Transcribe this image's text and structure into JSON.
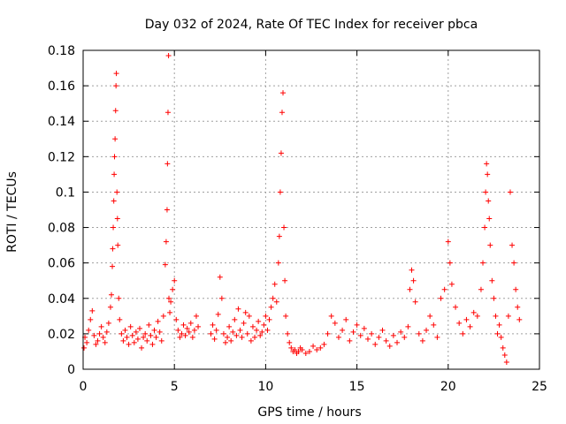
{
  "chart_data": {
    "type": "scatter",
    "title": "Day 032 of 2024, Rate Of TEC Index for receiver pbca",
    "xlabel": "GPS time / hours",
    "ylabel": "ROTI / TECUs",
    "xlim": [
      0,
      25
    ],
    "ylim": [
      0,
      0.18
    ],
    "x_ticks": [
      0,
      5,
      10,
      15,
      20,
      25
    ],
    "x_tick_labels": [
      "0",
      "5",
      "10",
      "15",
      "20",
      "25"
    ],
    "y_ticks": [
      0,
      0.02,
      0.04,
      0.06,
      0.08,
      0.1,
      0.12,
      0.14,
      0.16,
      0.18
    ],
    "y_tick_labels": [
      "0",
      "0.02",
      "0.04",
      "0.06",
      "0.08",
      "0.1",
      "0.12",
      "0.14",
      "0.16",
      "0.18"
    ],
    "grid": true,
    "marker": "plus",
    "color": "#ff0000",
    "series": [
      {
        "name": "ROTI",
        "x": [
          0.05,
          0.1,
          0.2,
          0.3,
          0.4,
          0.5,
          0.6,
          0.7,
          0.8,
          0.9,
          1.0,
          1.1,
          1.2,
          1.3,
          1.4,
          1.5,
          1.55,
          1.6,
          1.62,
          1.65,
          1.68,
          1.7,
          1.72,
          1.75,
          1.78,
          1.8,
          1.82,
          1.85,
          1.88,
          1.9,
          1.95,
          2.0,
          2.1,
          2.2,
          2.3,
          2.4,
          2.5,
          2.6,
          2.7,
          2.8,
          2.9,
          3.0,
          3.1,
          3.2,
          3.3,
          3.4,
          3.5,
          3.6,
          3.7,
          3.8,
          3.9,
          4.0,
          4.1,
          4.2,
          4.3,
          4.4,
          4.5,
          4.55,
          4.6,
          4.62,
          4.65,
          4.68,
          4.7,
          4.75,
          4.8,
          4.9,
          5.0,
          5.1,
          5.2,
          5.3,
          5.4,
          5.5,
          5.6,
          5.7,
          5.8,
          5.9,
          6.0,
          6.1,
          6.2,
          6.3,
          7.0,
          7.1,
          7.2,
          7.3,
          7.4,
          7.5,
          7.6,
          7.7,
          7.8,
          7.9,
          8.0,
          8.1,
          8.2,
          8.3,
          8.4,
          8.5,
          8.6,
          8.7,
          8.8,
          8.9,
          9.0,
          9.1,
          9.2,
          9.3,
          9.4,
          9.5,
          9.6,
          9.7,
          9.8,
          9.9,
          10.0,
          10.1,
          10.2,
          10.3,
          10.4,
          10.5,
          10.6,
          10.7,
          10.75,
          10.8,
          10.85,
          10.9,
          10.95,
          11.0,
          11.05,
          11.1,
          11.2,
          11.3,
          11.4,
          11.5,
          11.6,
          11.7,
          11.8,
          11.9,
          12.0,
          12.2,
          12.4,
          12.6,
          12.8,
          13.0,
          13.2,
          13.4,
          13.6,
          13.8,
          14.0,
          14.2,
          14.4,
          14.6,
          14.8,
          15.0,
          15.2,
          15.4,
          15.6,
          15.8,
          16.0,
          16.2,
          16.4,
          16.6,
          16.8,
          17.0,
          17.2,
          17.4,
          17.6,
          17.8,
          17.9,
          18.0,
          18.1,
          18.2,
          18.4,
          18.6,
          18.8,
          19.0,
          19.2,
          19.4,
          19.6,
          19.8,
          20.0,
          20.1,
          20.2,
          20.4,
          20.6,
          20.8,
          21.0,
          21.2,
          21.4,
          21.6,
          21.8,
          21.9,
          22.0,
          22.05,
          22.1,
          22.15,
          22.2,
          22.25,
          22.3,
          22.4,
          22.5,
          22.6,
          22.7,
          22.8,
          22.9,
          23.0,
          23.1,
          23.2,
          23.3,
          23.4,
          23.5,
          23.6,
          23.7,
          23.8,
          23.9
        ],
        "y": [
          0.012,
          0.018,
          0.015,
          0.022,
          0.028,
          0.033,
          0.019,
          0.014,
          0.016,
          0.02,
          0.024,
          0.018,
          0.015,
          0.021,
          0.026,
          0.035,
          0.042,
          0.058,
          0.068,
          0.08,
          0.095,
          0.11,
          0.12,
          0.13,
          0.146,
          0.16,
          0.167,
          0.1,
          0.085,
          0.07,
          0.04,
          0.028,
          0.02,
          0.016,
          0.022,
          0.018,
          0.014,
          0.024,
          0.019,
          0.015,
          0.021,
          0.017,
          0.023,
          0.012,
          0.018,
          0.02,
          0.016,
          0.025,
          0.019,
          0.014,
          0.022,
          0.018,
          0.027,
          0.021,
          0.016,
          0.03,
          0.059,
          0.072,
          0.09,
          0.116,
          0.145,
          0.177,
          0.04,
          0.032,
          0.038,
          0.045,
          0.05,
          0.028,
          0.022,
          0.018,
          0.02,
          0.025,
          0.019,
          0.023,
          0.021,
          0.026,
          0.018,
          0.022,
          0.03,
          0.024,
          0.02,
          0.025,
          0.017,
          0.022,
          0.031,
          0.052,
          0.04,
          0.02,
          0.015,
          0.018,
          0.024,
          0.016,
          0.021,
          0.028,
          0.019,
          0.034,
          0.022,
          0.018,
          0.026,
          0.032,
          0.02,
          0.03,
          0.016,
          0.024,
          0.018,
          0.022,
          0.027,
          0.019,
          0.021,
          0.025,
          0.03,
          0.022,
          0.028,
          0.035,
          0.04,
          0.048,
          0.038,
          0.06,
          0.075,
          0.1,
          0.122,
          0.145,
          0.156,
          0.08,
          0.05,
          0.03,
          0.02,
          0.015,
          0.012,
          0.01,
          0.011,
          0.009,
          0.01,
          0.012,
          0.011,
          0.009,
          0.01,
          0.013,
          0.011,
          0.012,
          0.014,
          0.02,
          0.03,
          0.026,
          0.018,
          0.022,
          0.028,
          0.016,
          0.021,
          0.025,
          0.019,
          0.023,
          0.017,
          0.02,
          0.014,
          0.018,
          0.022,
          0.016,
          0.013,
          0.019,
          0.015,
          0.021,
          0.018,
          0.024,
          0.045,
          0.056,
          0.05,
          0.038,
          0.02,
          0.016,
          0.022,
          0.03,
          0.025,
          0.018,
          0.04,
          0.045,
          0.072,
          0.06,
          0.048,
          0.035,
          0.026,
          0.02,
          0.028,
          0.024,
          0.032,
          0.03,
          0.045,
          0.06,
          0.08,
          0.1,
          0.116,
          0.11,
          0.095,
          0.085,
          0.07,
          0.05,
          0.04,
          0.03,
          0.02,
          0.025,
          0.018,
          0.012,
          0.008,
          0.004,
          0.03,
          0.1,
          0.07,
          0.06,
          0.045,
          0.035,
          0.028
        ]
      }
    ]
  }
}
